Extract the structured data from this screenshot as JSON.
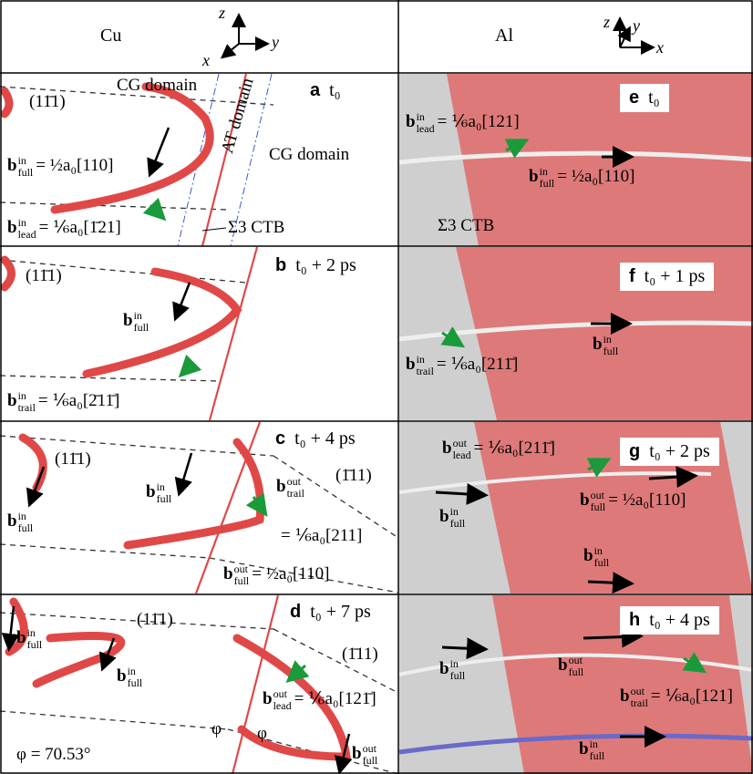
{
  "header": {
    "left": {
      "label": "Cu",
      "axes": [
        "z",
        "x",
        "y"
      ]
    },
    "right": {
      "label": "Al",
      "axes": [
        "z",
        "y",
        "x"
      ]
    }
  },
  "panels": [
    {
      "letter": "a",
      "time": "t₀",
      "labels": [
        {
          "text": "CG domain"
        },
        {
          "text": "(11̄1)"
        },
        {
          "text": "CG domain"
        },
        {
          "text": "AT domain"
        },
        {
          "b": "b",
          "sup": "in",
          "sub": "full",
          "eq": "= ½a₀[110]"
        },
        {
          "b": "b",
          "sup": "in",
          "sub": "lead",
          "eq": "= ⅙a₀[1̄21]"
        },
        {
          "text": "Σ3 CTB"
        }
      ]
    },
    {
      "letter": "b",
      "time": "t₀ + 2 ps",
      "labels": [
        {
          "text": "(11̄1)"
        },
        {
          "b": "b",
          "sup": "in",
          "sub": "full"
        },
        {
          "b": "b",
          "sup": "in",
          "sub": "trail",
          "eq": "= ⅙a₀[2̄11̄]"
        }
      ]
    },
    {
      "letter": "c",
      "time": "t₀ + 4 ps",
      "labels": [
        {
          "text": "(11̄1)"
        },
        {
          "text": "(1̄11)"
        },
        {
          "b": "b",
          "sup": "in",
          "sub": "full"
        },
        {
          "b": "b",
          "sup": "in",
          "sub": "full"
        },
        {
          "b": "b",
          "sup": "out",
          "sub": "trail"
        },
        {
          "text": "= ⅙a₀[211]"
        },
        {
          "b": "b",
          "sup": "out",
          "sub": "full",
          "eq": "= ½a₀[110]"
        }
      ]
    },
    {
      "letter": "d",
      "time": "t₀ + 7 ps",
      "labels": [
        {
          "text": "(11̄1)"
        },
        {
          "text": "(1̄11)"
        },
        {
          "b": "b",
          "sup": "in",
          "sub": "full"
        },
        {
          "b": "b",
          "sup": "in",
          "sub": "full"
        },
        {
          "b": "b",
          "sup": "out",
          "sub": "lead",
          "eq": "= ⅙a₀[121̄]"
        },
        {
          "text": "φ"
        },
        {
          "text": "φ"
        },
        {
          "text": "φ = 70.53°"
        },
        {
          "b": "b",
          "sup": "out",
          "sub": "full"
        }
      ]
    },
    {
      "letter": "e",
      "time": "t₀",
      "labels": [
        {
          "b": "b",
          "sup": "in",
          "sub": "lead",
          "eq": "= ⅙a₀[121]"
        },
        {
          "b": "b",
          "sup": "in",
          "sub": "full",
          "eq": "= ½a₀[110]"
        },
        {
          "text": "Σ3 CTB"
        }
      ]
    },
    {
      "letter": "f",
      "time": "t₀ + 1 ps",
      "labels": [
        {
          "b": "b",
          "sup": "in",
          "sub": "full"
        },
        {
          "b": "b",
          "sup": "in",
          "sub": "trail",
          "eq": "= ⅙a₀[211̄]"
        }
      ]
    },
    {
      "letter": "g",
      "time": "t₀ + 2 ps",
      "labels": [
        {
          "b": "b",
          "sup": "out",
          "sub": "lead",
          "eq": "= ⅙a₀[211̄]"
        },
        {
          "b": "b",
          "sup": "in",
          "sub": "full"
        },
        {
          "b": "b",
          "sup": "out",
          "sub": "full",
          "eq": "= ½a₀[110]"
        },
        {
          "b": "b",
          "sup": "in",
          "sub": "full"
        }
      ]
    },
    {
      "letter": "h",
      "time": "t₀ + 4 ps",
      "labels": [
        {
          "b": "b",
          "sup": "in",
          "sub": "full"
        },
        {
          "b": "b",
          "sup": "out",
          "sub": "full"
        },
        {
          "b": "b",
          "sup": "out",
          "sub": "trail",
          "eq": "= ⅙a₀[121]"
        },
        {
          "b": "b",
          "sup": "in",
          "sub": "full"
        }
      ]
    }
  ]
}
